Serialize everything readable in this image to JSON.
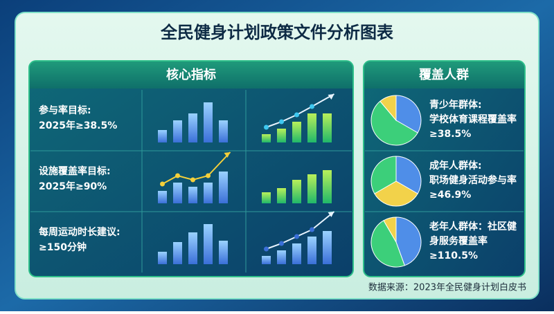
{
  "header": {
    "title": "全民健身计划政策文件分析图表"
  },
  "core": {
    "title": "核心指标",
    "rows": [
      {
        "lines": [
          "参与率目标:",
          "2025年≥38.5%"
        ]
      },
      {
        "lines": [
          "设施覆盖率目标:",
          "2025年≥90%"
        ]
      },
      {
        "lines": [
          "每周运动时长建议:",
          "≥150分钟"
        ]
      }
    ]
  },
  "groups": {
    "title": "覆盖人群",
    "items": [
      {
        "lines": [
          "青少年群体:",
          "学校体育课程覆盖率",
          "≥38.5%"
        ]
      },
      {
        "lines": [
          "成年人群体:",
          "职场健身活动参与率",
          "≥46.9%"
        ]
      },
      {
        "lines": [
          "老年人群体：社区健",
          "身服务覆盖率",
          "≥110.5%"
        ]
      }
    ]
  },
  "footer": {
    "source": "数据来源：2023年全民健身计划白皮书"
  }
}
